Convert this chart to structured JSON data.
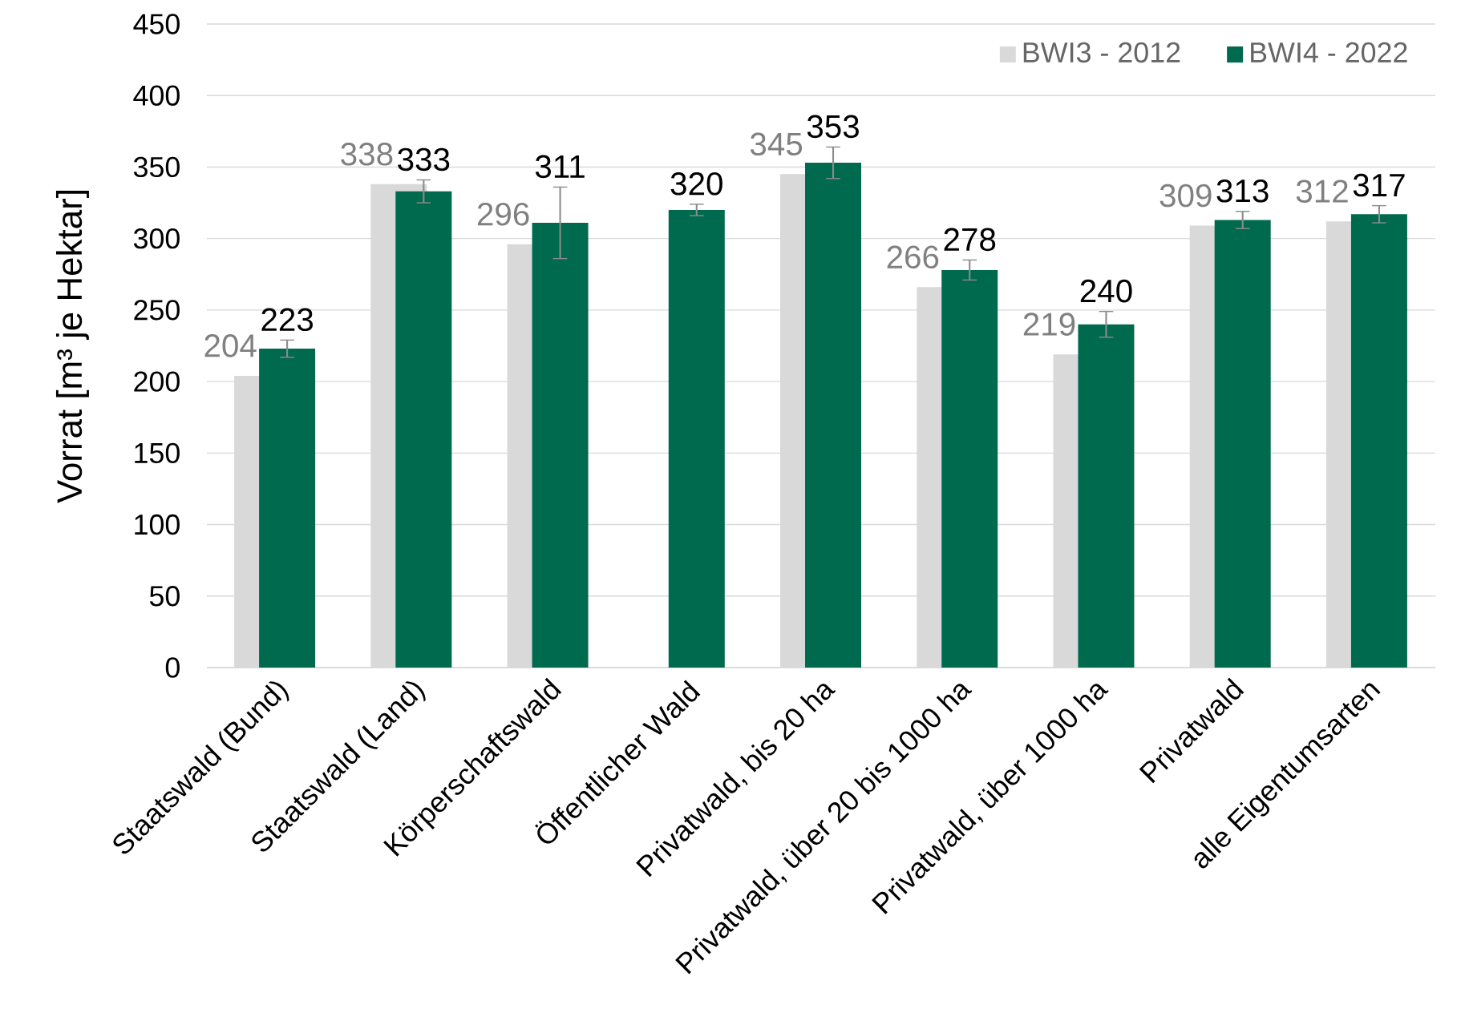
{
  "chart_data": {
    "type": "bar",
    "ylabel": "Vorrat [m³ je Hektar]",
    "categories": [
      "Staatswald (Bund)",
      "Staatswald (Land)",
      "Körperschaftswald",
      "Öffentlicher Wald",
      "Privatwald, bis 20 ha",
      "Privatwald, über 20 bis 1000 ha",
      "Privatwald, über 1000 ha",
      "Privatwald",
      "alle Eigentumsarten"
    ],
    "series": [
      {
        "name": "BWI3 - 2012",
        "color": "#d9d9d9",
        "values": [
          204,
          338,
          296,
          null,
          345,
          266,
          219,
          309,
          312
        ]
      },
      {
        "name": "BWI4 - 2022",
        "color": "#006a4e",
        "values": [
          223,
          333,
          311,
          320,
          353,
          278,
          240,
          313,
          317
        ],
        "errors": [
          6,
          8,
          25,
          4,
          11,
          7,
          9,
          6,
          6
        ]
      }
    ],
    "ylim": [
      0,
      450
    ],
    "yticks": [
      0,
      50,
      100,
      150,
      200,
      250,
      300,
      350,
      400,
      450
    ],
    "grid": "y",
    "legend": "top right",
    "data_labels": true
  }
}
